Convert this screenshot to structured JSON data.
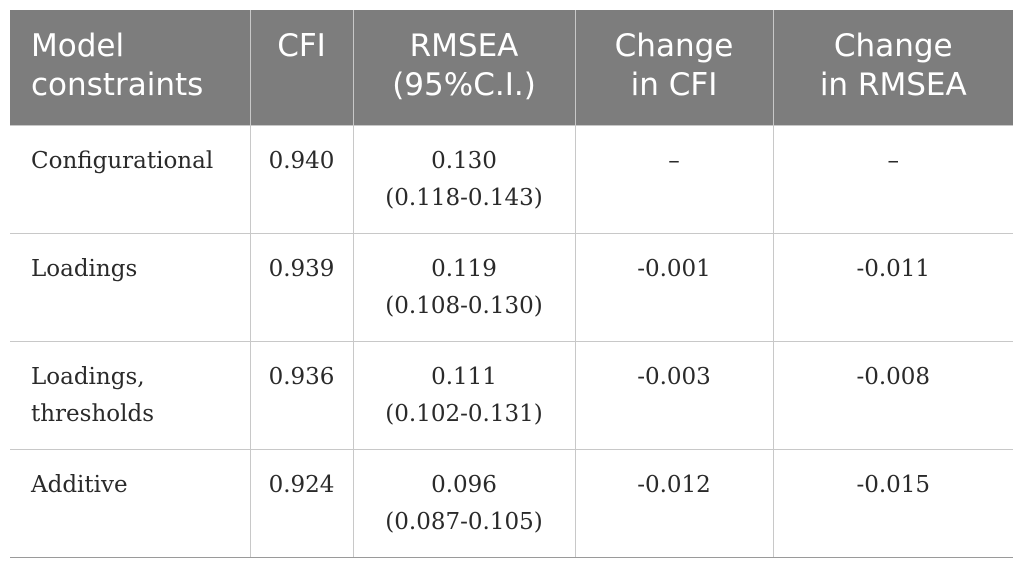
{
  "table": {
    "headers": [
      [
        "Model",
        "constraints"
      ],
      [
        "CFI"
      ],
      [
        "RMSEA",
        "(95%C.I.)"
      ],
      [
        "Change",
        "in CFI"
      ],
      [
        "Change",
        "in RMSEA"
      ]
    ],
    "rows": [
      {
        "constraint": [
          "Configurational"
        ],
        "cfi": "0.940",
        "rmsea": "0.130",
        "rmsea_ci": "(0.118-0.143)",
        "change_cfi": "–",
        "change_rmsea": "–"
      },
      {
        "constraint": [
          "Loadings"
        ],
        "cfi": "0.939",
        "rmsea": "0.119",
        "rmsea_ci": "(0.108-0.130)",
        "change_cfi": "-0.001",
        "change_rmsea": "-0.011"
      },
      {
        "constraint": [
          "Loadings,",
          "thresholds"
        ],
        "cfi": "0.936",
        "rmsea": "0.111",
        "rmsea_ci": "(0.102-0.131)",
        "change_cfi": "-0.003",
        "change_rmsea": "-0.008"
      },
      {
        "constraint": [
          "Additive"
        ],
        "cfi": "0.924",
        "rmsea": "0.096",
        "rmsea_ci": "(0.087-0.105)",
        "change_cfi": "-0.012",
        "change_rmsea": "-0.015"
      }
    ]
  },
  "colors": {
    "header_bg": "#7d7d7d",
    "header_text": "#ffffff",
    "body_text": "#2a2a2a",
    "grid": "#c8c8c8"
  }
}
